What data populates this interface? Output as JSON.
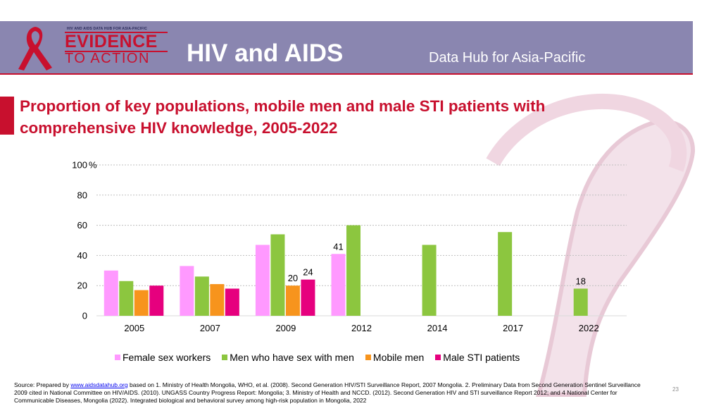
{
  "header": {
    "logo_small": "HIV AND AIDS DATA HUB FOR ASIA-PACIFIC",
    "logo_evidence": "EVIDENCE",
    "logo_to_action": "TO ACTION",
    "title": "HIV and AIDS",
    "subtitle": "Data Hub for Asia-Pacific"
  },
  "colors": {
    "header_band": "#8a86b0",
    "accent_red": "#c8102e",
    "ribbon": "#f0dde6"
  },
  "chart_data": {
    "type": "bar",
    "title": "Proportion of key populations, mobile men and male STI patients with comprehensive HIV knowledge, 2005-2022",
    "categories": [
      "2005",
      "2007",
      "2009",
      "2012",
      "2014",
      "2017",
      "2022"
    ],
    "ylim": [
      0,
      100
    ],
    "yticks": [
      "0",
      "20",
      "40",
      "60",
      "80",
      "100"
    ],
    "yunit": "%",
    "grid": true,
    "legend_position": "bottom",
    "series": [
      {
        "name": "Female sex workers",
        "color": "#ff99ff",
        "values": [
          30,
          33,
          47,
          41,
          null,
          null,
          null
        ],
        "labels": [
          "",
          "",
          "",
          "41",
          "",
          "",
          ""
        ]
      },
      {
        "name": "Men who have sex with men",
        "color": "#8cc63f",
        "values": [
          23,
          26,
          54,
          60,
          47,
          55.5,
          18
        ],
        "labels": [
          "",
          "",
          "",
          "",
          "",
          "",
          "18"
        ]
      },
      {
        "name": "Mobile men",
        "color": "#f7941d",
        "values": [
          17,
          21,
          20,
          null,
          null,
          null,
          null
        ],
        "labels": [
          "",
          "",
          "20",
          "",
          "",
          "",
          ""
        ]
      },
      {
        "name": "Male STI patients",
        "color": "#e6007e",
        "values": [
          20,
          18,
          24,
          null,
          null,
          null,
          null
        ],
        "labels": [
          "",
          "",
          "24",
          "",
          "",
          "",
          ""
        ]
      }
    ]
  },
  "source": {
    "prefix": "Source: Prepared by ",
    "link_text": "www.aidsdatahub.org",
    "text": " based on 1. Ministry of Health Mongolia, WHO, et al. (2008). Second Generation HIV/STI  Surveillance Report, 2007 Mongolia. 2. Preliminary Data from Second Generation Sentinel Surveillance 2009 cited in National Committee on HIV/AIDS. (2010). UNGASS Country Progress Report: Mongolia; 3. Ministry of Health and NCCD. (2012). Second Generation HIV and STI surveillance Report 2012; and 4 National Center for Communicable Diseases, Mongolia (2022). Integrated biological and behavioral survey among high-risk population in Mongolia, 2022"
  },
  "page_number": "23"
}
